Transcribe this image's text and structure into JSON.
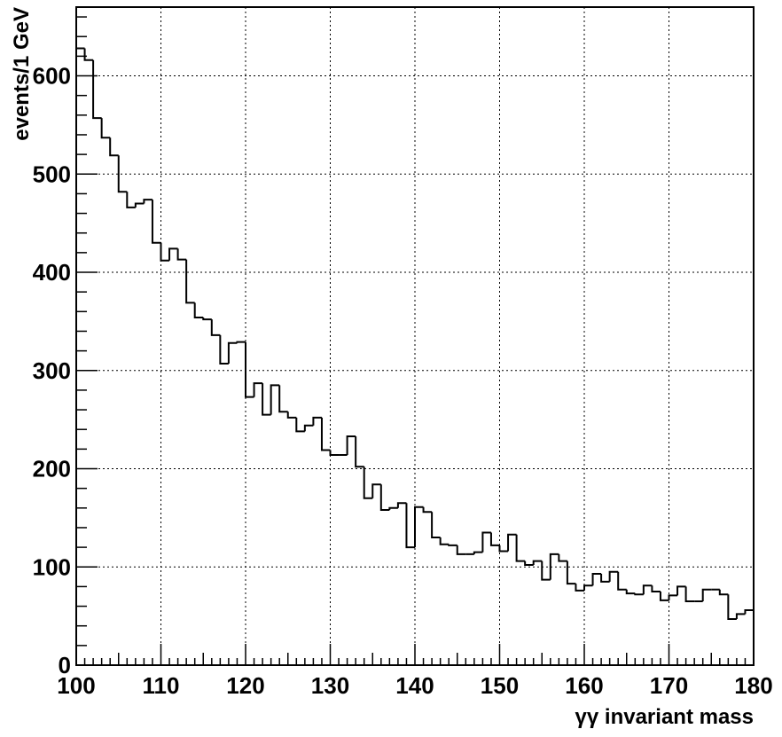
{
  "chart_data": {
    "type": "histogram",
    "title": "",
    "xlabel": "γγ invariant mass",
    "ylabel": "events/1 GeV",
    "xlim": [
      100,
      180
    ],
    "ylim": [
      0,
      670
    ],
    "bin_width": 1,
    "grid": true,
    "legend": "none",
    "line_color": "#000000",
    "x_ticks": [
      100,
      110,
      120,
      130,
      140,
      150,
      160,
      170,
      180
    ],
    "y_ticks": [
      0,
      100,
      200,
      300,
      400,
      500,
      600
    ],
    "bin_edges_start": 100,
    "values": [
      628,
      616,
      557,
      537,
      519,
      482,
      466,
      470,
      474,
      430,
      412,
      424,
      413,
      369,
      354,
      352,
      336,
      307,
      328,
      329,
      273,
      287,
      255,
      285,
      258,
      252,
      238,
      244,
      252,
      219,
      214,
      214,
      233,
      202,
      170,
      184,
      158,
      160,
      165,
      120,
      161,
      156,
      130,
      123,
      122,
      113,
      113,
      115,
      135,
      122,
      116,
      133,
      106,
      102,
      106,
      87,
      113,
      106,
      83,
      76,
      81,
      93,
      85,
      95,
      77,
      73,
      72,
      81,
      75,
      66,
      71,
      80,
      65,
      65,
      77,
      77,
      72,
      47,
      52,
      56
    ]
  }
}
